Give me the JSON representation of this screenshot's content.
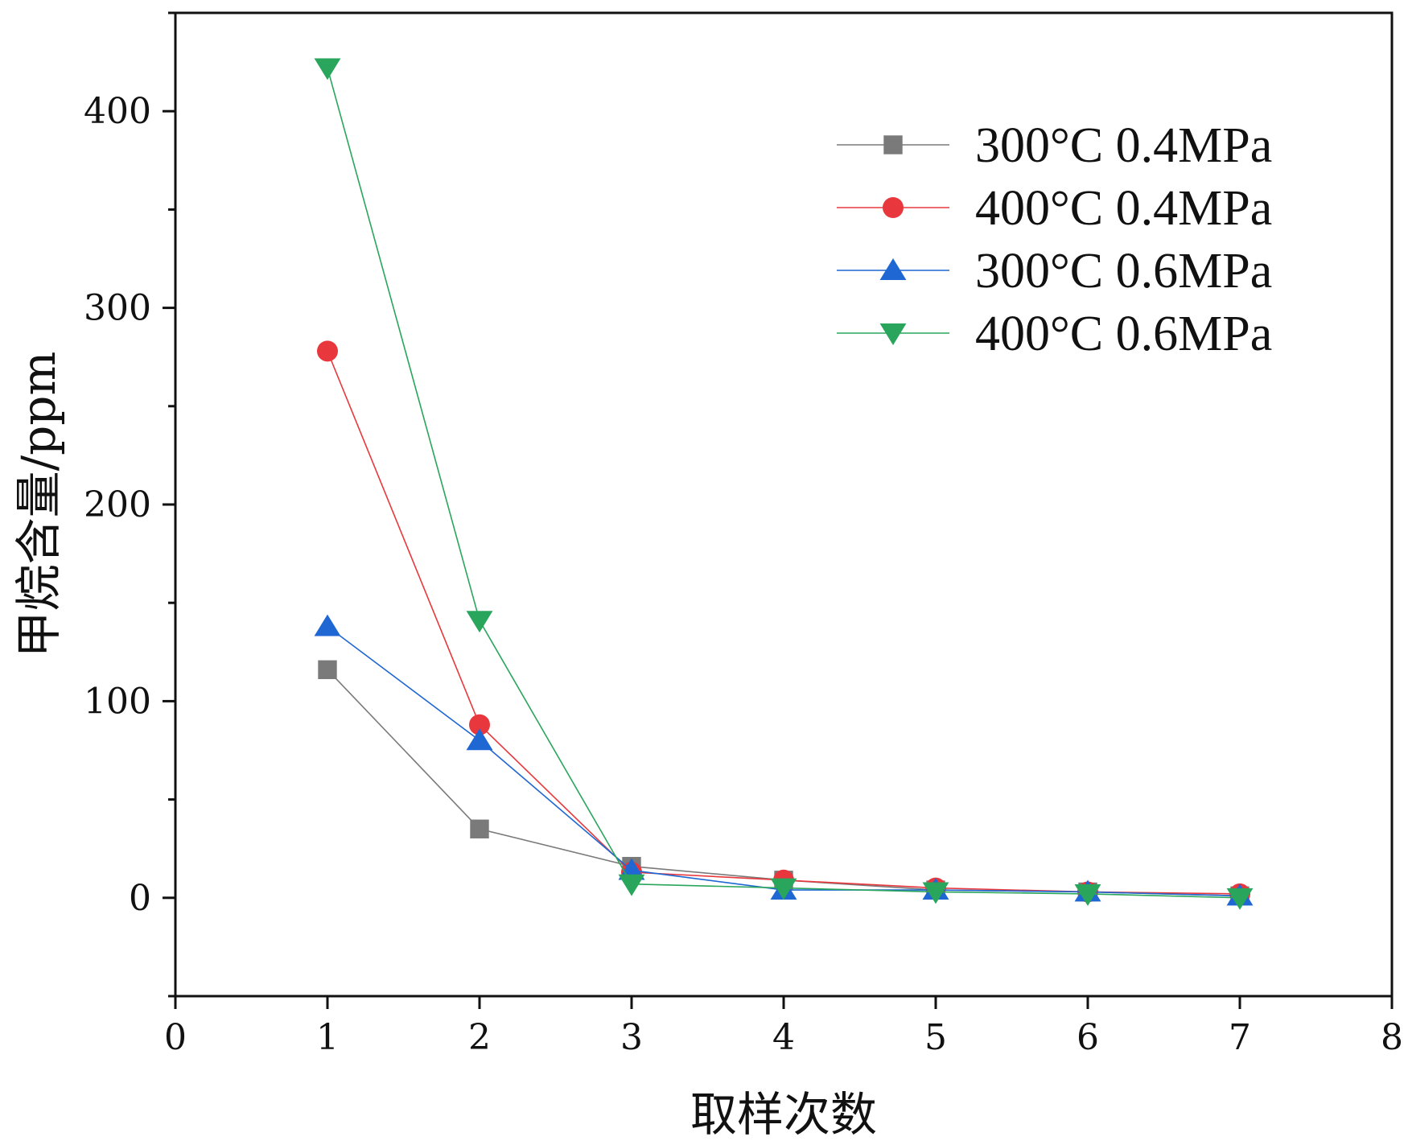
{
  "chart_data": {
    "type": "line",
    "title": "",
    "xlabel": "取样次数",
    "ylabel": "甲烷含量/ppm",
    "xlim": [
      0,
      8
    ],
    "ylim": [
      -50,
      450
    ],
    "x_ticks": [
      "0",
      "1",
      "2",
      "3",
      "4",
      "5",
      "6",
      "7",
      "8"
    ],
    "y_ticks": [
      "0",
      "100",
      "200",
      "300",
      "400"
    ],
    "grid": false,
    "legend_position": "top-right",
    "x": [
      1,
      2,
      3,
      4,
      5,
      6,
      7
    ],
    "series": [
      {
        "name": "300°C  0.4MPa",
        "color": "#7a7a7a",
        "marker": "square",
        "values": [
          116,
          35,
          16,
          9,
          4,
          3,
          1
        ]
      },
      {
        "name": "400°C  0.4MPa",
        "color": "#e8383d",
        "marker": "circle",
        "values": [
          278,
          88,
          13,
          9,
          5,
          3,
          2
        ]
      },
      {
        "name": "300°C  0.6MPa",
        "color": "#1f67d2",
        "marker": "triangle-up",
        "values": [
          138,
          80,
          14,
          4,
          4,
          3,
          1
        ]
      },
      {
        "name": "400°C  0.6MPa",
        "color": "#2aa65c",
        "marker": "triangle-down",
        "values": [
          422,
          141,
          7,
          5,
          3,
          2,
          0
        ]
      }
    ]
  }
}
